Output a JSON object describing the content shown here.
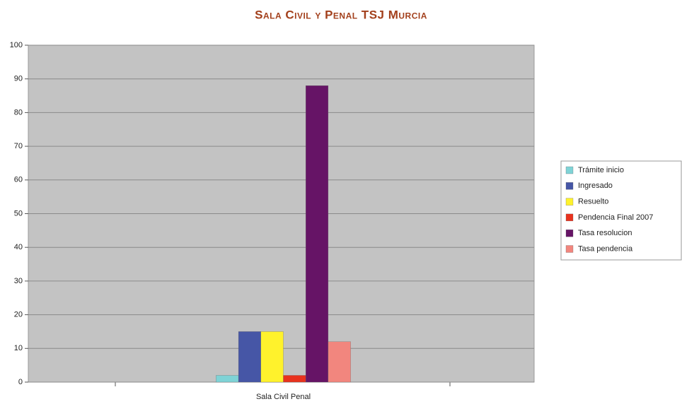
{
  "chart_data": {
    "type": "bar",
    "title": "Sala Civil y Penal TSJ Murcia",
    "categories": [
      "Sala Civil Penal"
    ],
    "series": [
      {
        "name": "Trámite inicio",
        "color": "#7fd3d6",
        "values": [
          2
        ]
      },
      {
        "name": "Ingresado",
        "color": "#4656a6",
        "values": [
          15
        ]
      },
      {
        "name": "Resuelto",
        "color": "#fff22c",
        "values": [
          15
        ]
      },
      {
        "name": "Pendencia Final 2007",
        "color": "#e8321e",
        "values": [
          2
        ]
      },
      {
        "name": "Tasa resolucion",
        "color": "#661466",
        "values": [
          88
        ]
      },
      {
        "name": "Tasa pendencia",
        "color": "#f2867e",
        "values": [
          12
        ]
      }
    ],
    "ylim": [
      0,
      100
    ],
    "yticks": [
      0,
      10,
      20,
      30,
      40,
      50,
      60,
      70,
      80,
      90,
      100
    ],
    "grid": true,
    "legend": "right"
  }
}
